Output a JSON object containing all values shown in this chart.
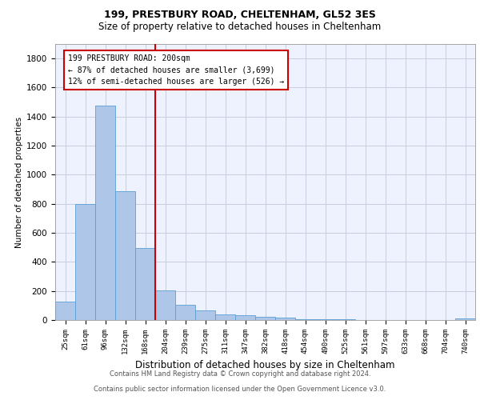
{
  "title1": "199, PRESTBURY ROAD, CHELTENHAM, GL52 3ES",
  "title2": "Size of property relative to detached houses in Cheltenham",
  "xlabel": "Distribution of detached houses by size in Cheltenham",
  "ylabel": "Number of detached properties",
  "categories": [
    "25sqm",
    "61sqm",
    "96sqm",
    "132sqm",
    "168sqm",
    "204sqm",
    "239sqm",
    "275sqm",
    "311sqm",
    "347sqm",
    "382sqm",
    "418sqm",
    "454sqm",
    "490sqm",
    "525sqm",
    "561sqm",
    "597sqm",
    "633sqm",
    "668sqm",
    "704sqm",
    "740sqm"
  ],
  "values": [
    125,
    800,
    1475,
    885,
    495,
    205,
    105,
    65,
    40,
    32,
    22,
    15,
    8,
    5,
    3,
    2,
    2,
    1,
    1,
    1,
    10
  ],
  "bar_color": "#aec6e8",
  "bar_edge_color": "#5a9fd4",
  "vline_x": 4.5,
  "vline_color": "#cc0000",
  "annotation_line1": "199 PRESTBURY ROAD: 200sqm",
  "annotation_line2": "← 87% of detached houses are smaller (3,699)",
  "annotation_line3": "12% of semi-detached houses are larger (526) →",
  "box_color": "#cc0000",
  "ylim": [
    0,
    1900
  ],
  "yticks": [
    0,
    200,
    400,
    600,
    800,
    1000,
    1200,
    1400,
    1600,
    1800
  ],
  "footer1": "Contains HM Land Registry data © Crown copyright and database right 2024.",
  "footer2": "Contains public sector information licensed under the Open Government Licence v3.0.",
  "bg_color": "#eef2ff",
  "grid_color": "#c8cce0"
}
